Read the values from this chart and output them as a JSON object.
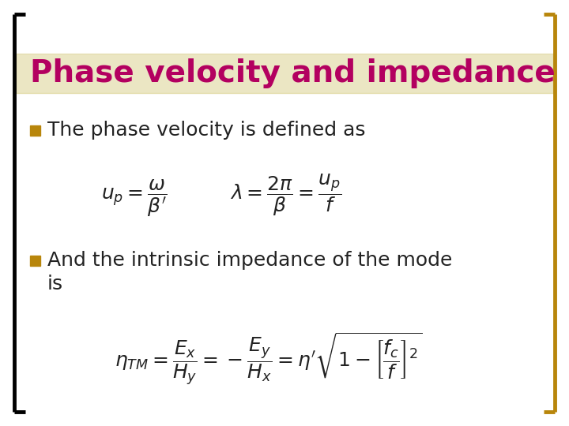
{
  "background_color": "#ffffff",
  "title": "Phase velocity and impedance",
  "title_color": "#b30060",
  "title_fontsize": 28,
  "bullet_square_color": "#b8860b",
  "bullet1_text": "The phase velocity is defined as",
  "bullet2_line1": "And the intrinsic impedance of the mode",
  "bullet2_line2": "is",
  "formula1": "$u_p = \\dfrac{\\omega}{\\beta'}$          $\\lambda = \\dfrac{2\\pi}{\\beta} = \\dfrac{u_p}{f}$",
  "formula2": "$\\eta_{TM} = \\dfrac{E_x}{H_y} = -\\dfrac{E_y}{H_x} = \\eta^{\\prime}\\sqrt{1 - \\left[\\dfrac{f_c}{f}\\right]^2}$",
  "text_color": "#222222",
  "body_fontsize": 18,
  "formula_fontsize": 18,
  "left_bracket_color": "#000000",
  "right_bracket_color": "#b8860b",
  "title_stripe_color": "#d4c97a",
  "title_stripe_alpha": 0.45
}
